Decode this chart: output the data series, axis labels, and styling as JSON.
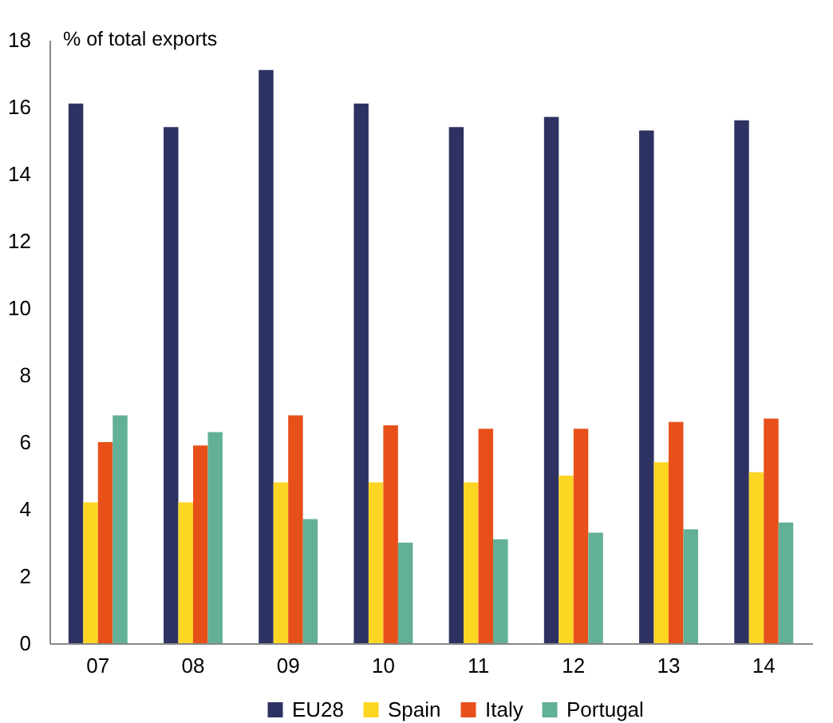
{
  "chart_data": {
    "type": "bar",
    "ylabel": "% of total exports",
    "categories": [
      "07",
      "08",
      "09",
      "10",
      "11",
      "12",
      "13",
      "14"
    ],
    "series": [
      {
        "name": "EU28",
        "color": "#2e3262",
        "values": [
          16.1,
          15.4,
          17.1,
          16.1,
          15.4,
          15.7,
          15.3,
          15.6
        ]
      },
      {
        "name": "Spain",
        "color": "#fdd624",
        "values": [
          4.2,
          4.2,
          4.8,
          4.8,
          4.8,
          5.0,
          5.4,
          5.1
        ]
      },
      {
        "name": "Italy",
        "color": "#e8501a",
        "values": [
          6.0,
          5.9,
          6.8,
          6.5,
          6.4,
          6.4,
          6.6,
          6.7
        ]
      },
      {
        "name": "Portugal",
        "color": "#62b096",
        "values": [
          6.8,
          6.3,
          3.7,
          3.0,
          3.1,
          3.3,
          3.4,
          3.6
        ]
      }
    ],
    "ylim": [
      0,
      18
    ],
    "yticks": [
      0,
      2,
      4,
      6,
      8,
      10,
      12,
      14,
      16,
      18
    ],
    "grid": false,
    "legend": "bottom"
  }
}
